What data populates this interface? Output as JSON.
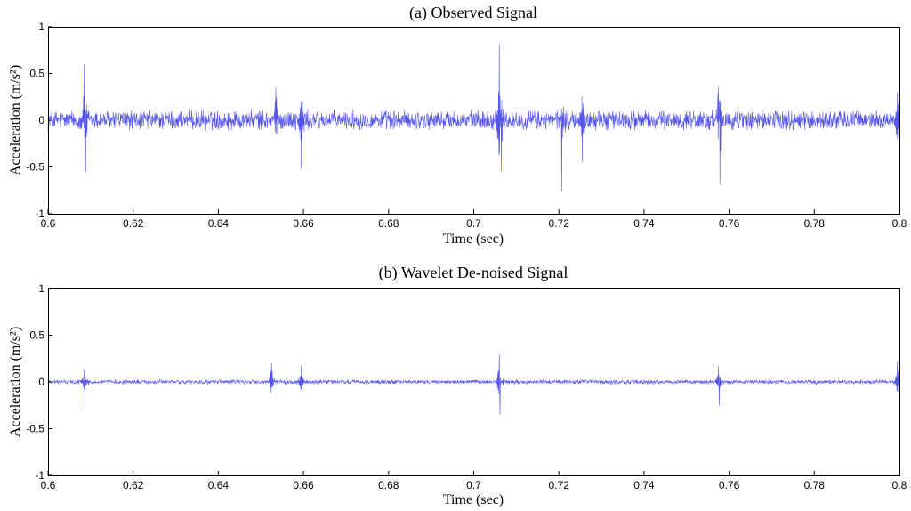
{
  "chart_data": [
    {
      "type": "line",
      "title": "(a)  Observed Signal",
      "xlabel": "Time (sec)",
      "ylabel": "Acceleration (m/s²)",
      "xlim": [
        0.6,
        0.8
      ],
      "ylim": [
        -1,
        1
      ],
      "xticks": [
        "0.6",
        "0.62",
        "0.64",
        "0.66",
        "0.68",
        "0.7",
        "0.72",
        "0.74",
        "0.76",
        "0.78",
        "0.8"
      ],
      "yticks": [
        "1",
        "0.5",
        "0",
        "-0.5",
        "-1"
      ],
      "grid": false,
      "series": [
        {
          "color": "#5555ee",
          "noise_amplitude": 0.12,
          "spikes": [
            {
              "t": 0.6085,
              "y": 0.7
            },
            {
              "t": 0.6088,
              "y": -0.55
            },
            {
              "t": 0.6535,
              "y": 0.35
            },
            {
              "t": 0.6595,
              "y": -0.52
            },
            {
              "t": 0.706,
              "y": 0.88
            },
            {
              "t": 0.7065,
              "y": -0.55
            },
            {
              "t": 0.7205,
              "y": 0.38
            },
            {
              "t": 0.7207,
              "y": -0.76
            },
            {
              "t": 0.7255,
              "y": -0.45
            },
            {
              "t": 0.7575,
              "y": 0.52
            },
            {
              "t": 0.7578,
              "y": -0.68
            },
            {
              "t": 0.7995,
              "y": 0.3
            }
          ]
        }
      ]
    },
    {
      "type": "line",
      "title": "(b)  Wavelet De-noised Signal",
      "xlabel": "Time (sec)",
      "ylabel": "Acceleration (m/s²)",
      "xlim": [
        0.6,
        0.8
      ],
      "ylim": [
        -1,
        1
      ],
      "xticks": [
        "0.6",
        "0.62",
        "0.64",
        "0.66",
        "0.68",
        "0.7",
        "0.72",
        "0.74",
        "0.76",
        "0.78",
        "0.8"
      ],
      "yticks": [
        "1",
        "0.5",
        "0",
        "-0.5",
        "-1"
      ],
      "grid": false,
      "series": [
        {
          "color": "#5555ee",
          "noise_amplitude": 0.025,
          "spikes": [
            {
              "t": 0.6085,
              "y": 0.3
            },
            {
              "t": 0.6087,
              "y": -0.32
            },
            {
              "t": 0.6525,
              "y": 0.2
            },
            {
              "t": 0.6595,
              "y": 0.18
            },
            {
              "t": 0.706,
              "y": 0.45
            },
            {
              "t": 0.7062,
              "y": -0.35
            },
            {
              "t": 0.7575,
              "y": 0.28
            },
            {
              "t": 0.7577,
              "y": -0.25
            },
            {
              "t": 0.7995,
              "y": 0.22
            }
          ]
        }
      ]
    }
  ]
}
